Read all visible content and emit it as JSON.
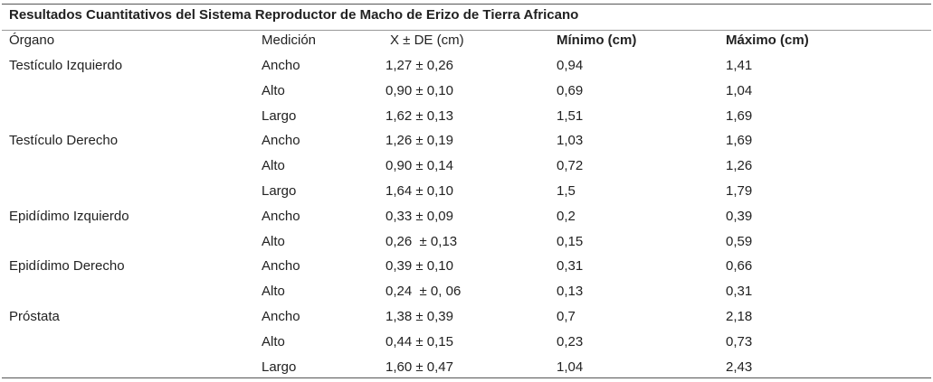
{
  "table": {
    "title": "Resultados Cuantitativos del Sistema Reproductor de Macho de Erizo de Tierra Africano",
    "header": [
      "Órgano",
      "Medición",
      "X ± DE (cm)",
      "Mínimo (cm)",
      "Máximo (cm)"
    ],
    "groups": [
      {
        "organ": "Testículo Izquierdo",
        "rows": [
          [
            "Ancho",
            "1,27 ± 0,26",
            "0,94",
            "1,41"
          ],
          [
            "Alto",
            "0,90 ± 0,10",
            "0,69",
            "1,04"
          ],
          [
            "Largo",
            "1,62 ± 0,13",
            "1,51",
            "1,69"
          ]
        ]
      },
      {
        "organ": "Testículo Derecho",
        "rows": [
          [
            "Ancho",
            "1,26 ± 0,19",
            "1,03",
            "1,69"
          ],
          [
            "Alto",
            "0,90 ± 0,14",
            "0,72",
            "1,26"
          ],
          [
            "Largo",
            "1,64 ± 0,10",
            "1,5",
            "1,79"
          ]
        ]
      },
      {
        "organ": "Epidídimo Izquierdo",
        "rows": [
          [
            "Ancho",
            "0,33 ± 0,09",
            "0,2",
            "0,39"
          ],
          [
            "Alto",
            "0,26  ± 0,13",
            "0,15",
            "0,59"
          ]
        ]
      },
      {
        "organ": "Epidídimo Derecho",
        "rows": [
          [
            "Ancho",
            "0,39 ± 0,10",
            "0,31",
            "0,66"
          ],
          [
            "Alto",
            "0,24  ± 0, 06",
            "0,13",
            "0,31"
          ]
        ]
      },
      {
        "organ": "Próstata",
        "rows": [
          [
            "Ancho",
            "1,38 ± 0,39",
            "0,7",
            "2,18"
          ],
          [
            "Alto",
            "0,44 ± 0,15",
            "0,23",
            "0,73"
          ],
          [
            "Largo",
            "1,60 ± 0,47",
            "1,04",
            "2,43"
          ]
        ]
      }
    ]
  }
}
